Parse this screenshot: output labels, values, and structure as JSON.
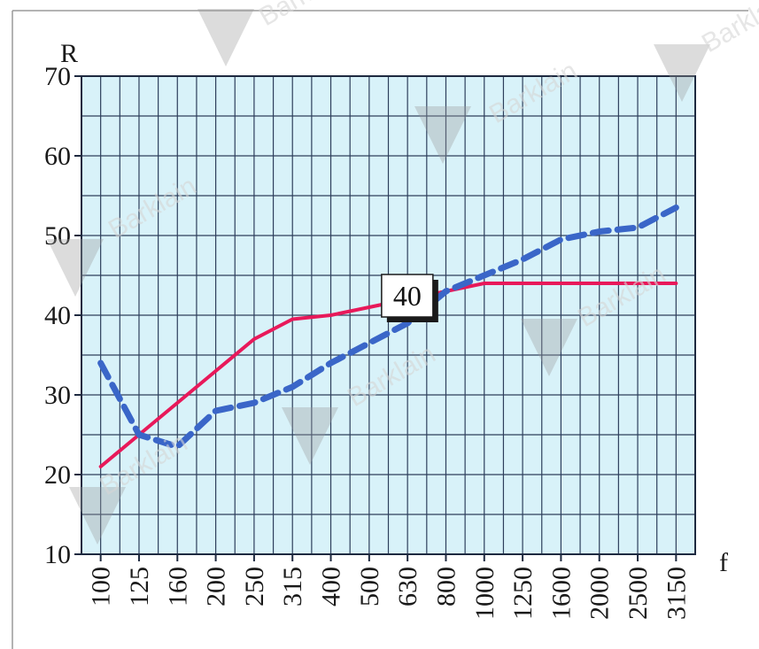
{
  "chart_data": {
    "type": "line",
    "xlabel": "f",
    "ylabel": "R",
    "categories": [
      "100",
      "125",
      "160",
      "200",
      "250",
      "315",
      "400",
      "500",
      "630",
      "800",
      "1000",
      "1250",
      "1600",
      "2000",
      "2500",
      "3150"
    ],
    "ylim": [
      10,
      70
    ],
    "yticks": [
      "70",
      "60",
      "50",
      "40",
      "30",
      "20",
      "10"
    ],
    "grid": true,
    "series": [
      {
        "style": "solid",
        "color": "#e8195a",
        "values": [
          21,
          25,
          29,
          33,
          37,
          39.5,
          40,
          41,
          42,
          43,
          44,
          44,
          44,
          44,
          44,
          44
        ]
      },
      {
        "style": "dashed",
        "color": "#3a66c8",
        "values": [
          34,
          25,
          23.5,
          28,
          29,
          31,
          34,
          36.5,
          39,
          43,
          45,
          47,
          49.5,
          50.5,
          51,
          53.5
        ]
      }
    ],
    "annotations": [
      {
        "text": "40",
        "category": "500",
        "value": 40
      }
    ],
    "watermark": "Barklain",
    "colors": {
      "plot_background": "#d8f2f9",
      "grid": "#2e3f5c"
    }
  }
}
